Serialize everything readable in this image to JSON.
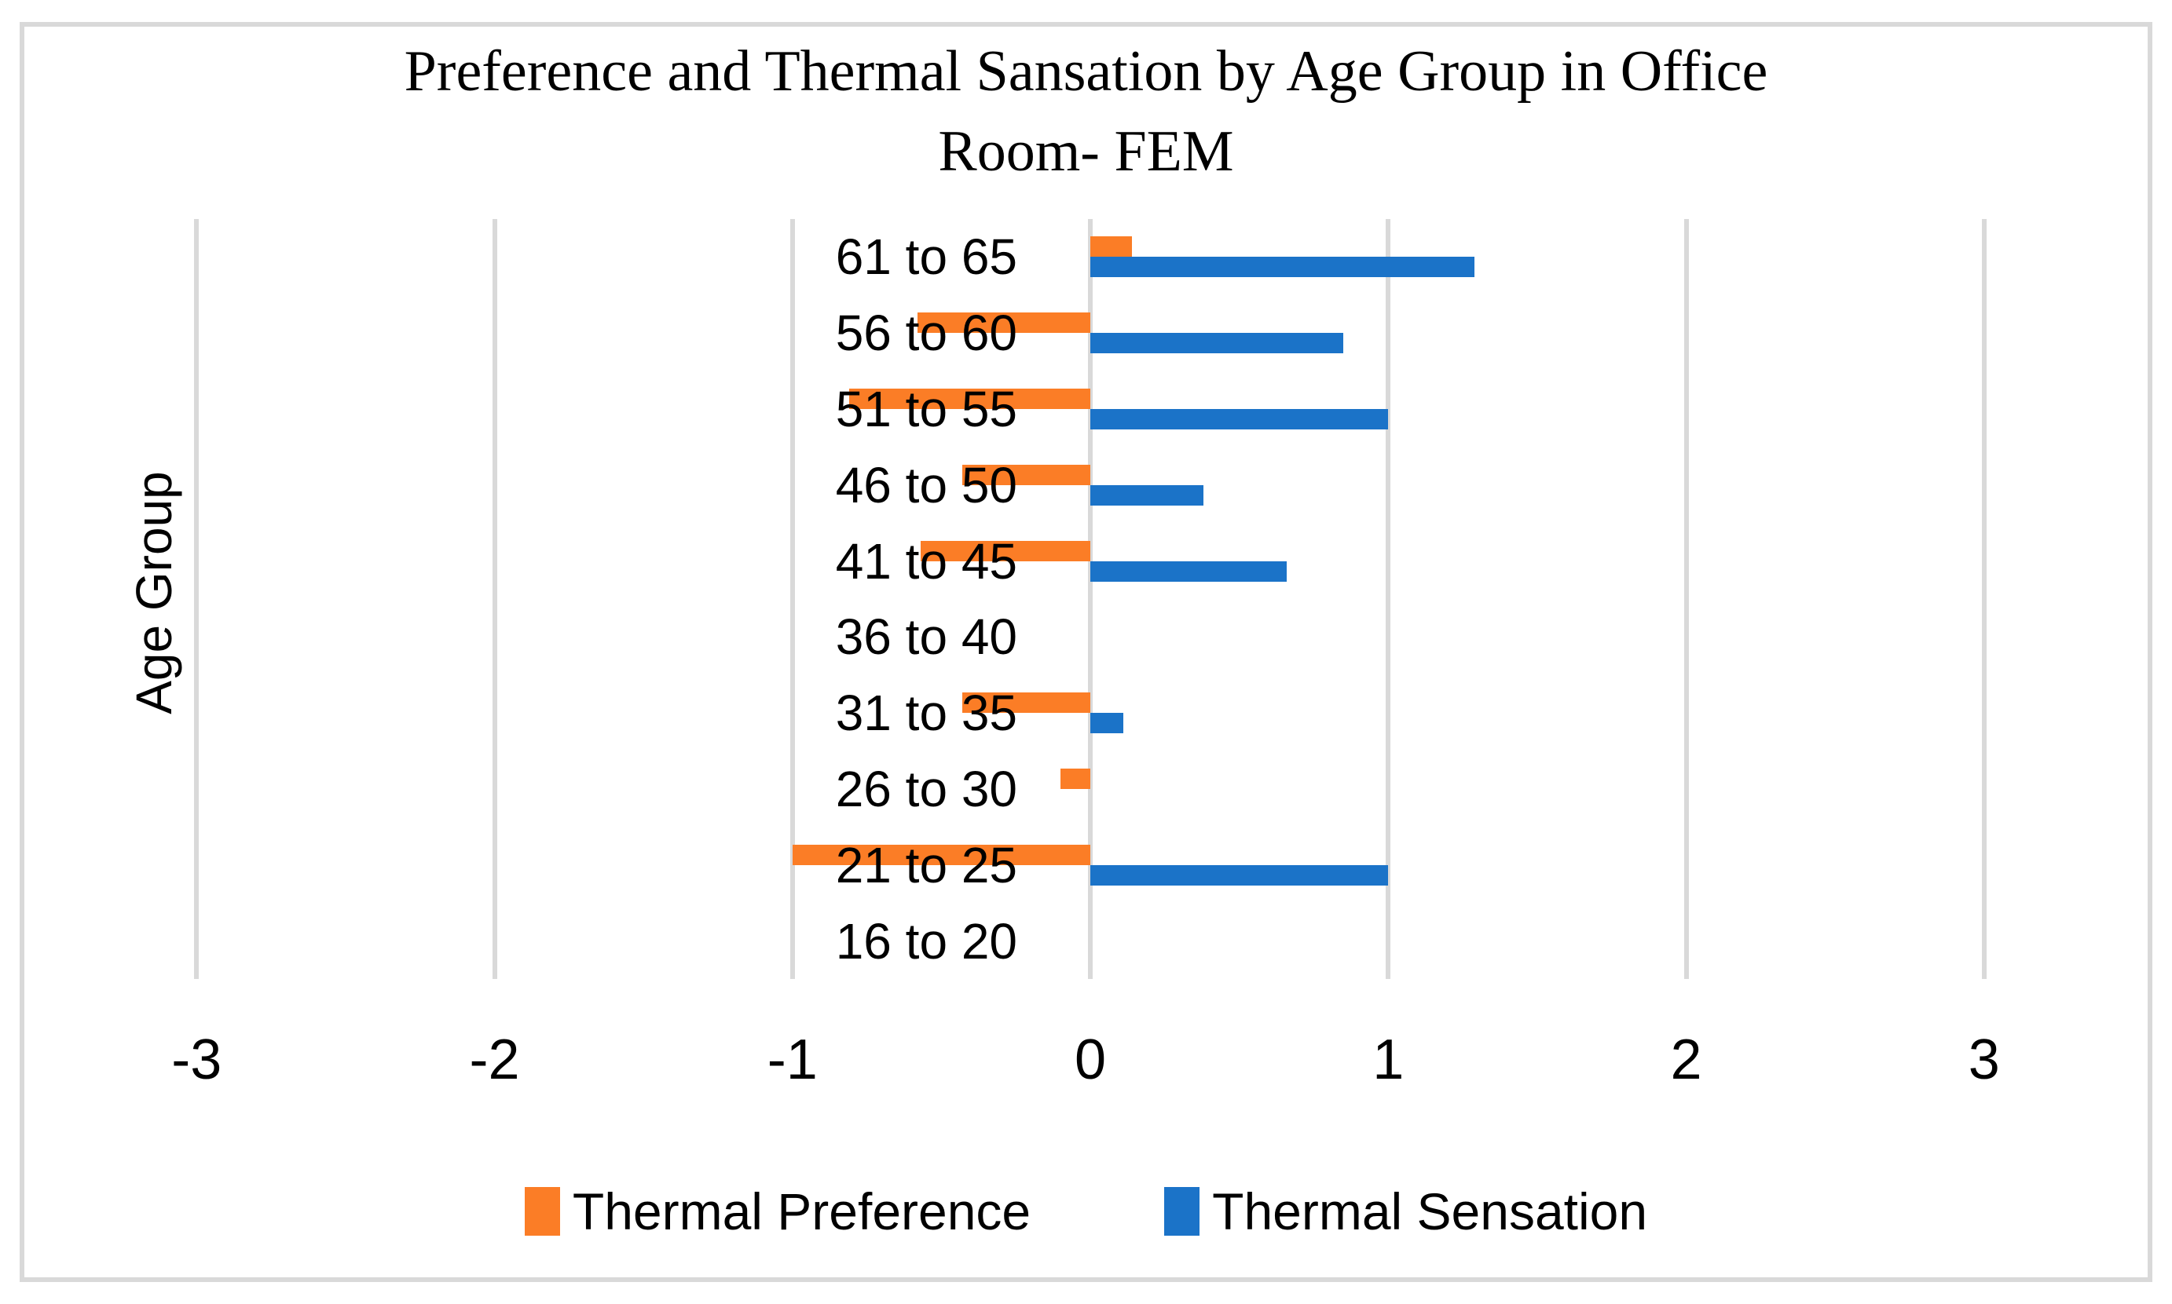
{
  "chart_data": {
    "type": "bar",
    "orientation": "horizontal",
    "title": "Preference and Thermal Sansation by Age Group in Office Room- FEM",
    "title_lines": [
      "Preference and Thermal Sansation by Age Group in Office",
      "Room- FEM"
    ],
    "ylabel": "Age Group",
    "xlabel": "",
    "categories": [
      "61 to 65",
      "56 to 60",
      "51 to 55",
      "46 to 50",
      "41 to 45",
      "36 to 40",
      "31 to 35",
      "26 to 30",
      "21 to 25",
      "16 to 20"
    ],
    "series": [
      {
        "name": "Thermal Preference",
        "color": "#FB7D26",
        "values": [
          0.14,
          -0.58,
          -0.81,
          -0.43,
          -0.57,
          0,
          -0.43,
          -0.1,
          -1.0,
          0
        ]
      },
      {
        "name": "Thermal Sensation",
        "color": "#1B73C8",
        "values": [
          1.29,
          0.85,
          1.0,
          0.38,
          0.66,
          0,
          0.11,
          0,
          1.0,
          0
        ]
      }
    ],
    "xticks": [
      -3,
      -2,
      -1,
      0,
      1,
      2,
      3
    ],
    "xlim": [
      -3,
      3
    ],
    "grid": true,
    "legend_position": "bottom",
    "gridline_color": "#D9D9D9",
    "frame_color": "#D9D9D9",
    "background_color": "#FFFFFF"
  }
}
